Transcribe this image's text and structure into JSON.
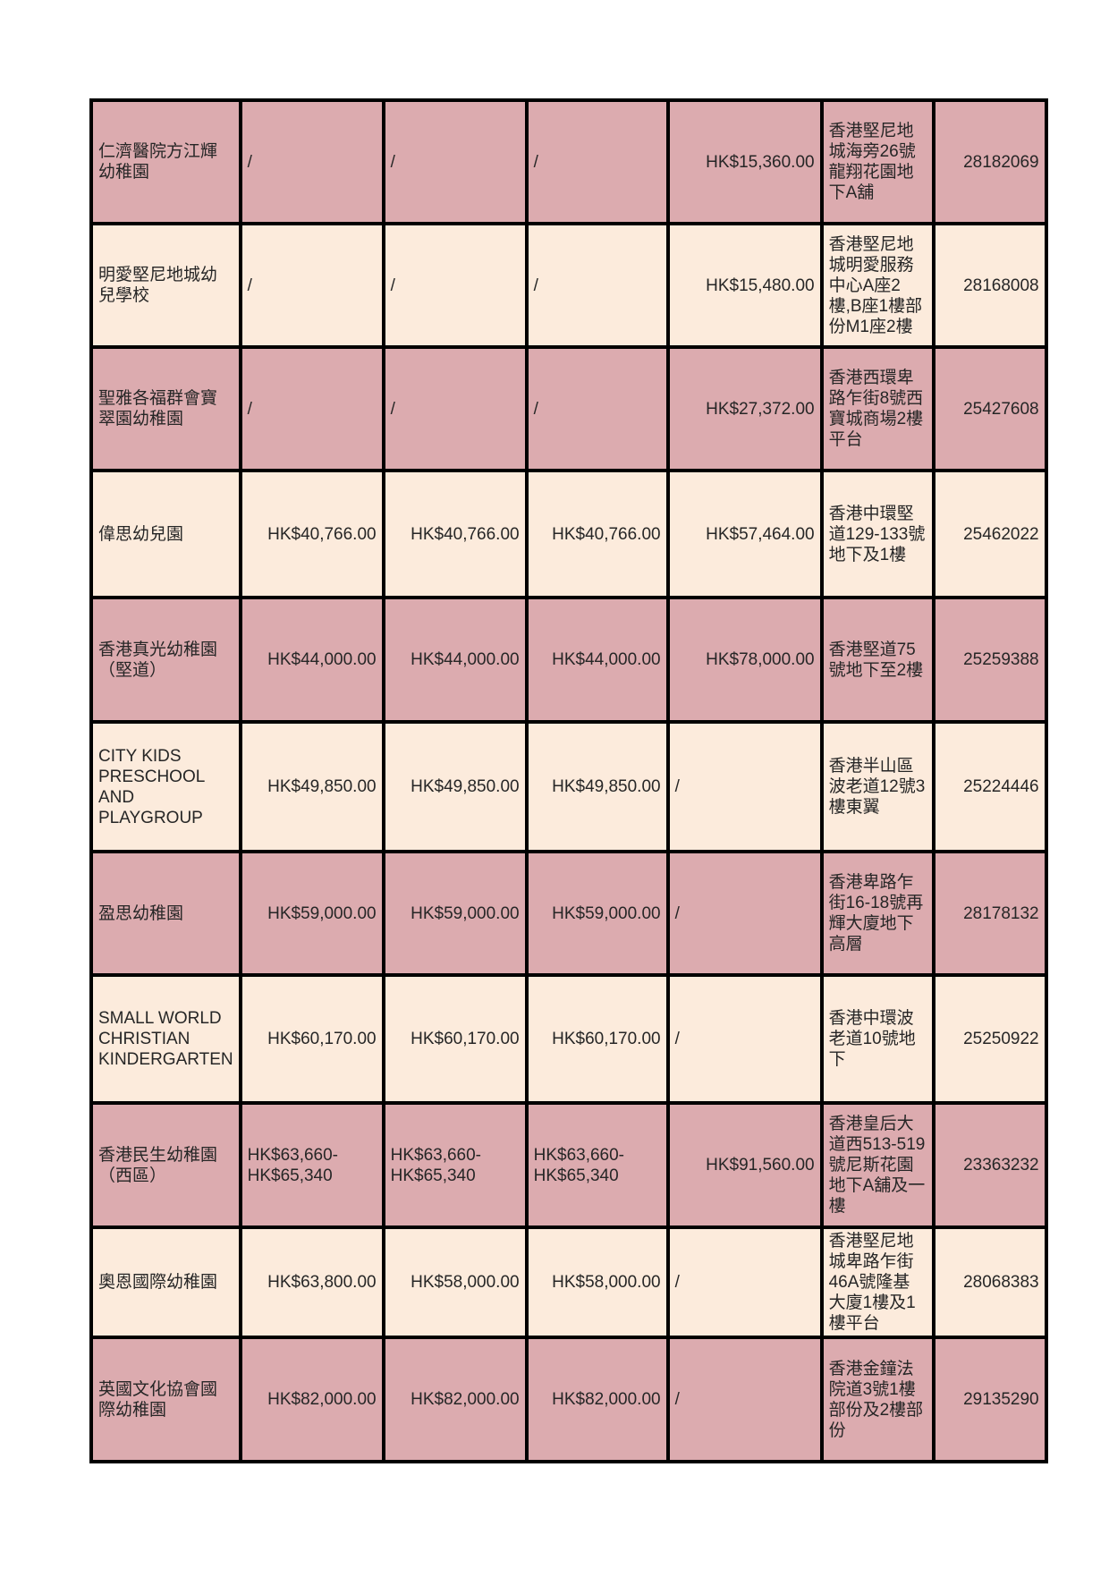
{
  "colors": {
    "row_pink": "#dcabaf",
    "row_cream": "#fcebdc",
    "border": "#000000",
    "page_background": "#ffffff"
  },
  "table": {
    "description": "kindergarten-fee-table",
    "rows": [
      {
        "shade": "pink",
        "name": "仁濟醫院方江輝幼稚園",
        "fees": [
          "/",
          "/",
          "/",
          "HK$15,360.00"
        ],
        "address": "香港堅尼地城海旁26號龍翔花園地下A舖",
        "phone": "28182069"
      },
      {
        "shade": "cream",
        "name": "明愛堅尼地城幼兒學校",
        "fees": [
          "/",
          "/",
          "/",
          "HK$15,480.00"
        ],
        "address": "香港堅尼地城明愛服務中心A座2樓,B座1樓部份M1座2樓",
        "phone": "28168008"
      },
      {
        "shade": "pink",
        "name": "聖雅各福群會寶翠園幼稚園",
        "fees": [
          "/",
          "/",
          "/",
          "HK$27,372.00"
        ],
        "address": "香港西環卑路乍街8號西寶城商場2樓平台",
        "phone": "25427608"
      },
      {
        "shade": "cream",
        "name": "偉思幼兒園",
        "fees": [
          "HK$40,766.00",
          "HK$40,766.00",
          "HK$40,766.00",
          "HK$57,464.00"
        ],
        "address": "香港中環堅道129-133號地下及1樓",
        "phone": "25462022"
      },
      {
        "shade": "pink",
        "name": "香港真光幼稚園（堅道）",
        "fees": [
          "HK$44,000.00",
          "HK$44,000.00",
          "HK$44,000.00",
          "HK$78,000.00"
        ],
        "address": "香港堅道75號地下至2樓",
        "phone": "25259388"
      },
      {
        "shade": "cream",
        "name": "CITY KIDS PRESCHOOL AND PLAYGROUP",
        "fees": [
          "HK$49,850.00",
          "HK$49,850.00",
          "HK$49,850.00",
          "/"
        ],
        "address": "香港半山區波老道12號3樓東翼",
        "phone": "25224446"
      },
      {
        "shade": "pink",
        "name": "盈思幼稚園",
        "fees": [
          "HK$59,000.00",
          "HK$59,000.00",
          "HK$59,000.00",
          "/"
        ],
        "address": "香港卑路乍街16-18號再輝大廈地下高層",
        "phone": "28178132"
      },
      {
        "shade": "cream",
        "name": "SMALL WORLD CHRISTIAN KINDERGARTEN",
        "fees": [
          "HK$60,170.00",
          "HK$60,170.00",
          "HK$60,170.00",
          "/"
        ],
        "address": "香港中環波老道10號地下",
        "phone": "25250922"
      },
      {
        "shade": "pink",
        "name": "香港民生幼稚園（西區）",
        "fees": [
          "HK$63,660-HK$65,340",
          "HK$63,660-HK$65,340",
          "HK$63,660-HK$65,340",
          "HK$91,560.00"
        ],
        "address": "香港皇后大道西513-519號尼斯花園地下A舖及一樓",
        "phone": "23363232"
      },
      {
        "shade": "cream",
        "name": "奧恩國際幼稚園",
        "fees": [
          "HK$63,800.00",
          "HK$58,000.00",
          "HK$58,000.00",
          "/"
        ],
        "address": "香港堅尼地城卑路乍街46A號隆基大廈1樓及1樓平台",
        "phone": "28068383"
      },
      {
        "shade": "pink",
        "name": "英國文化協會國際幼稚園",
        "fees": [
          "HK$82,000.00",
          "HK$82,000.00",
          "HK$82,000.00",
          "/"
        ],
        "address": "香港金鐘法院道3號1樓部份及2樓部份",
        "phone": "29135290"
      }
    ]
  }
}
